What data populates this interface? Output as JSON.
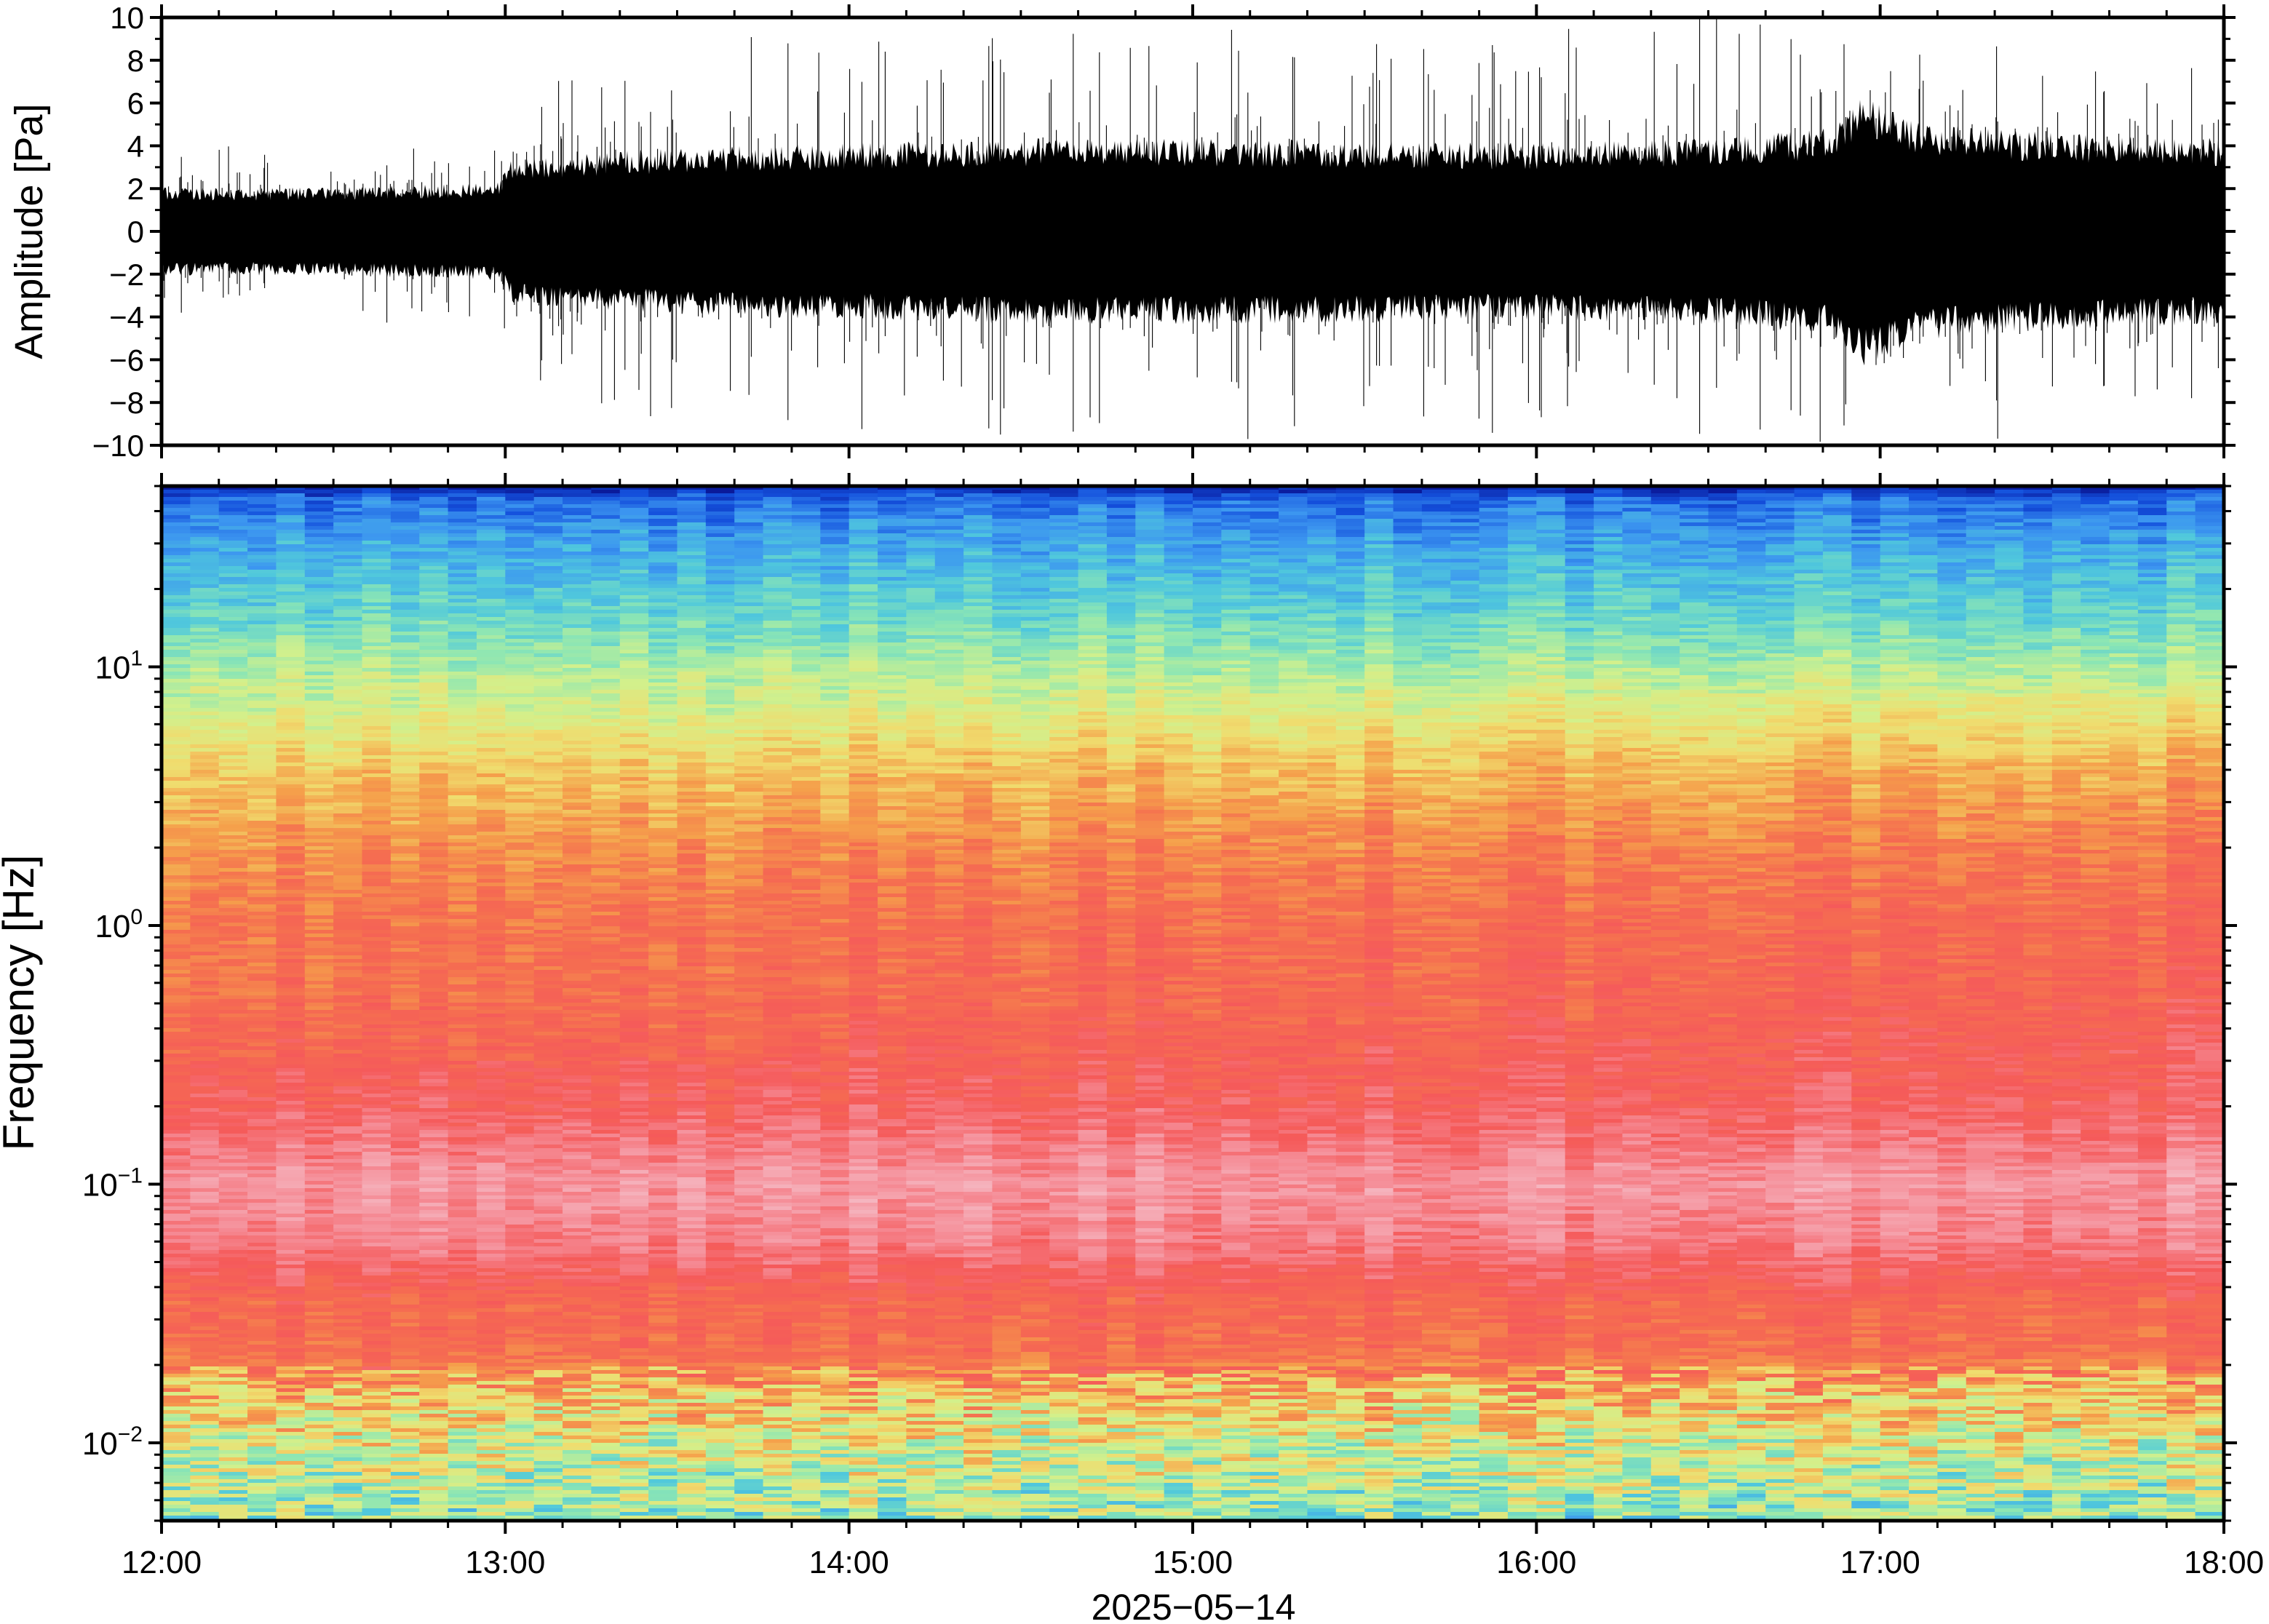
{
  "chart_data": [
    {
      "type": "line",
      "ylabel": "Amplitude [Pa]",
      "ylim": [
        -10,
        10
      ],
      "yticks": [
        10,
        8,
        6,
        4,
        2,
        0,
        -2,
        -4,
        -6,
        -8,
        -10
      ],
      "ytick_labels": [
        "10",
        "8",
        "6",
        "4",
        "2",
        "0",
        "−2",
        "−4",
        "−6",
        "−8",
        "−10"
      ],
      "xlim_hours": [
        12,
        18
      ],
      "series_color": "#000000",
      "envelope": {
        "x_hours": [
          12.0,
          12.5,
          12.98,
          13.02,
          13.5,
          14.0,
          14.5,
          15.0,
          15.5,
          16.0,
          16.5,
          16.85,
          16.95,
          17.1,
          17.5,
          18.0
        ],
        "core_amp_pa": [
          1.8,
          1.8,
          2.0,
          3.0,
          3.4,
          3.6,
          3.8,
          3.8,
          3.7,
          3.6,
          3.8,
          4.2,
          5.5,
          4.5,
          4.0,
          3.8
        ],
        "peak_amp_pa": [
          4.0,
          4.5,
          4.8,
          7.0,
          9.0,
          9.5,
          9.5,
          10.0,
          9.5,
          9.5,
          10.0,
          10.0,
          10.0,
          10.0,
          9.5,
          9.0
        ]
      }
    },
    {
      "type": "heatmap",
      "ylabel": "Frequency [Hz]",
      "yscale": "log",
      "ylim_hz": [
        0.005,
        50
      ],
      "yticks_hz": [
        10,
        1,
        0.1,
        0.01
      ],
      "ytick_labels": [
        {
          "base": "10",
          "exp": "1"
        },
        {
          "base": "10",
          "exp": "0"
        },
        {
          "base": "10",
          "exp": "−1"
        },
        {
          "base": "10",
          "exp": "−2"
        }
      ],
      "xlim_hours": [
        12,
        18
      ],
      "xticks": [
        "12:00",
        "13:00",
        "14:00",
        "15:00",
        "16:00",
        "17:00",
        "18:00"
      ],
      "xlabel": "2025−05−14",
      "colormap": [
        "#0a1a9a",
        "#1450dc",
        "#3c96f0",
        "#50c8dc",
        "#8ce6b4",
        "#d2f08c",
        "#f0dc6e",
        "#f5a04b",
        "#f56e50",
        "#f55a5a",
        "#f58c96",
        "#f5b4be",
        "#fadcdc"
      ],
      "level_profile": {
        "freq_hz": [
          50,
          45,
          30,
          15,
          8,
          4,
          2,
          1,
          0.5,
          0.2,
          0.1,
          0.06,
          0.035,
          0.022,
          0.016,
          0.01,
          0.005
        ],
        "level": [
          0.0,
          0.12,
          0.2,
          0.3,
          0.42,
          0.55,
          0.63,
          0.68,
          0.7,
          0.76,
          0.86,
          0.82,
          0.7,
          0.68,
          0.55,
          0.45,
          0.35
        ]
      }
    }
  ]
}
